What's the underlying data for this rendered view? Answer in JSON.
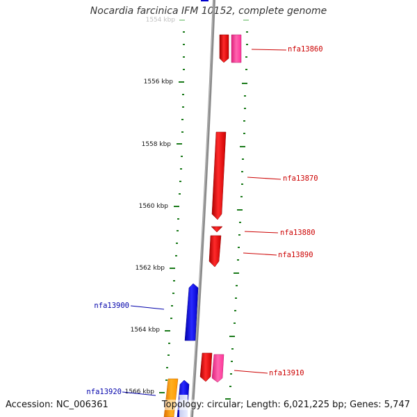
{
  "title": "Nocardia farcinica IFM 10152, complete genome",
  "footer": {
    "accession": "Accession: NC_006361",
    "topology": "Topology: circular; Length: 6,021,225 bp; Genes: 5,747"
  },
  "ruler": {
    "labels": [
      "1554 kbp",
      "1556 kbp",
      "1558 kbp",
      "1560 kbp",
      "1562 kbp",
      "1564 kbp",
      "1566 kbp"
    ]
  },
  "genes": [
    {
      "id": "nfa13860",
      "strand": "forward",
      "color": "#cc0000"
    },
    {
      "id": "nfa13870",
      "strand": "forward",
      "color": "#cc0000"
    },
    {
      "id": "nfa13880",
      "strand": "forward",
      "color": "#cc0000"
    },
    {
      "id": "nfa13890",
      "strand": "forward",
      "color": "#cc0000"
    },
    {
      "id": "nfa13900",
      "strand": "reverse",
      "color": "#0000cc"
    },
    {
      "id": "nfa13910",
      "strand": "forward",
      "color": "#cc0000"
    },
    {
      "id": "nfa13920",
      "strand": "reverse",
      "color": "#0000cc"
    }
  ],
  "colors": {
    "backbone": "#888888",
    "ticks": "#1a7a1a",
    "forward_label": "#cc0000",
    "reverse_label": "#0000aa",
    "pseudo": "#ff3399",
    "orange": "#ff9900"
  }
}
